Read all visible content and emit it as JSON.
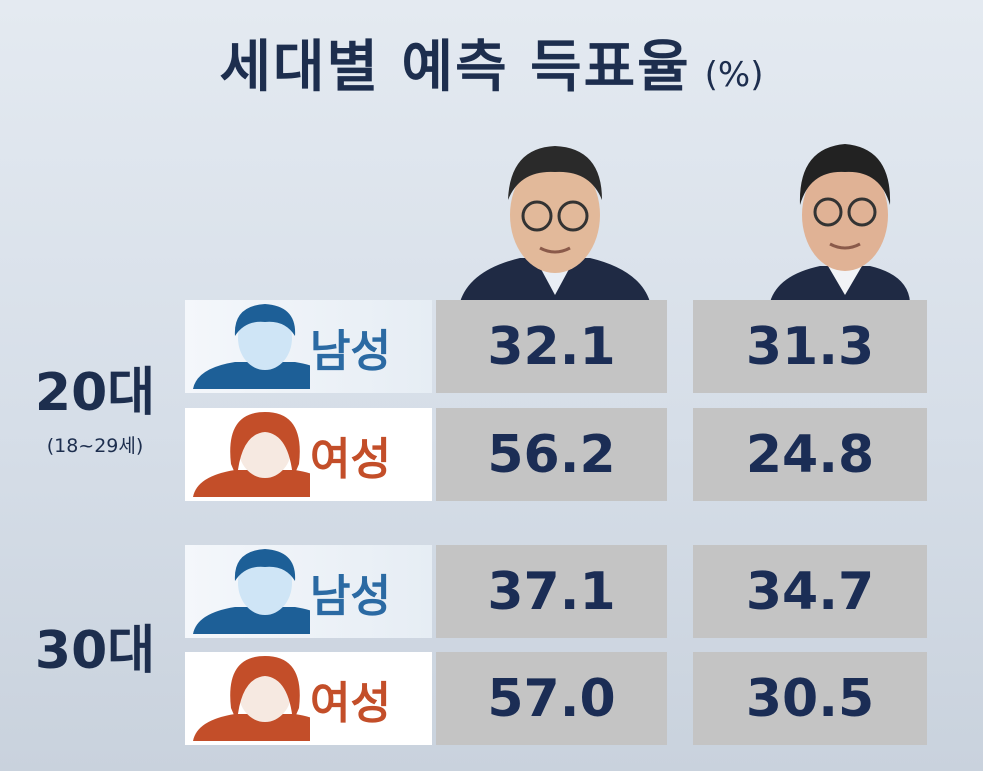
{
  "header": {
    "title": "세대별 예측 득표율",
    "unit": "(%)"
  },
  "groups": [
    {
      "label": "20대",
      "sublabel": "(18~29세)",
      "rows": [
        {
          "gender": "남성",
          "values": [
            "32.1",
            "31.3"
          ]
        },
        {
          "gender": "여성",
          "values": [
            "56.2",
            "24.8"
          ]
        }
      ]
    },
    {
      "label": "30대",
      "rows": [
        {
          "gender": "남성",
          "values": [
            "37.1",
            "34.7"
          ]
        },
        {
          "gender": "여성",
          "values": [
            "57.0",
            "30.5"
          ]
        }
      ]
    }
  ]
}
